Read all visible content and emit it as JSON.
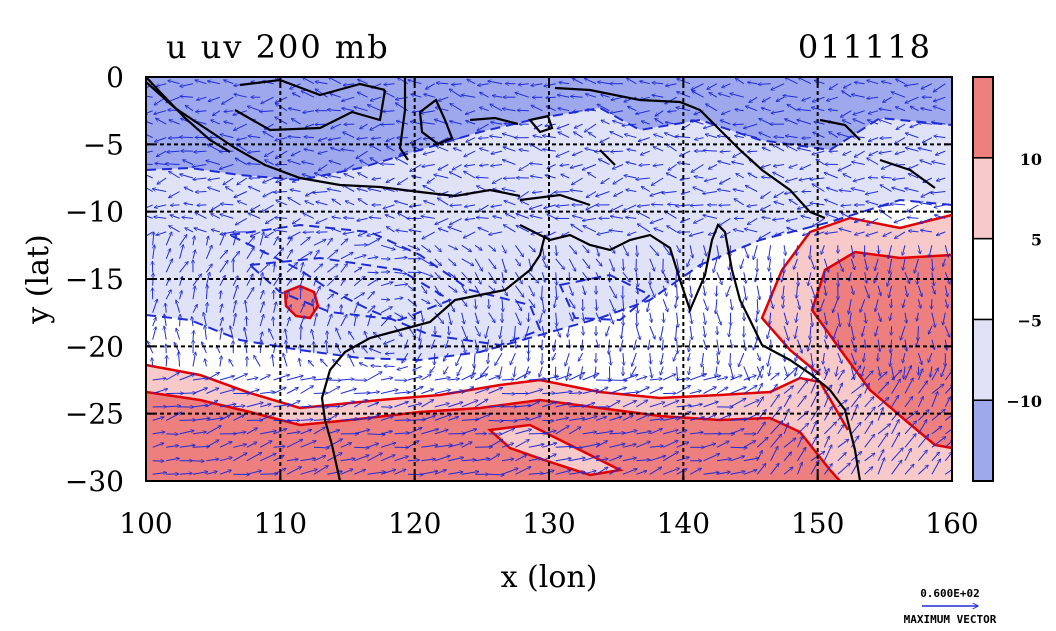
{
  "chart_data": {
    "type": "heatmap",
    "title_left": "u uv 200 mb",
    "title_right": "011118",
    "xlabel": "x (lon)",
    "ylabel": "y (lat)",
    "xlim": [
      100,
      160
    ],
    "ylim": [
      -30,
      0
    ],
    "x_ticks": [
      100,
      110,
      120,
      130,
      140,
      150,
      160
    ],
    "y_ticks": [
      0,
      -5,
      -10,
      -15,
      -20,
      -25,
      -30
    ],
    "y_tick_labels": [
      "0",
      "−5",
      "−10",
      "−15",
      "−20",
      "−25",
      "−30"
    ],
    "grid": true,
    "colorbar": {
      "boundaries": [
        -15,
        -10,
        -5,
        5,
        10,
        15
      ],
      "labels": [
        "−10",
        "−5",
        "5",
        "10"
      ],
      "colors": [
        "#9ea8ec",
        "#e0e3f8",
        "#ffffff",
        "#f7c9c9",
        "#ee7f7f"
      ]
    },
    "vector_key": {
      "value": "0.600E+02",
      "label": "MAXIMUM VECTOR"
    },
    "colors": {
      "strong_negative": "#9ea8ec",
      "weak_negative": "#e0e3f8",
      "neutral": "#ffffff",
      "weak_positive": "#f7c9c9",
      "strong_positive": "#ee7f7f",
      "vectors": "#1f2cd6",
      "coastline": "#000000",
      "positive_contour": "#e00000"
    }
  }
}
